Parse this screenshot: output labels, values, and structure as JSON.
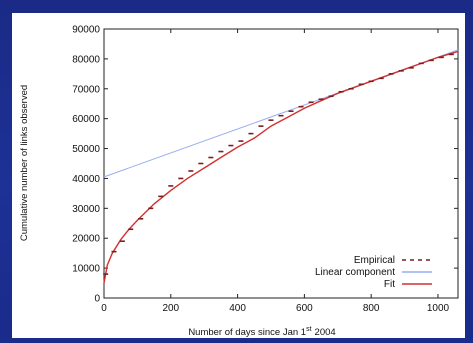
{
  "colors": {
    "slide_background": "#1b2d8c",
    "plot_background": "#ffffff",
    "empirical": "#7a1f1f",
    "linear": "#9aaef0",
    "fit": "#d43030"
  },
  "chart_data": {
    "type": "line",
    "xlabel": "Number of days since Jan 1",
    "xlabel_superscript": "st",
    "xlabel_year": "2004",
    "ylabel": "Cumulative number of links observed",
    "xlim": [
      0,
      1060
    ],
    "ylim": [
      0,
      90000
    ],
    "grid": false,
    "legend_position": "bottom-right",
    "x_ticks": [
      0,
      200,
      400,
      600,
      800,
      1000
    ],
    "y_ticks": [
      0,
      10000,
      20000,
      30000,
      40000,
      50000,
      60000,
      70000,
      80000,
      90000
    ],
    "series": [
      {
        "name": "Empirical",
        "style": "dashed-markers",
        "color": "#7a1f1f",
        "x": [
          5,
          30,
          55,
          80,
          110,
          140,
          170,
          200,
          230,
          260,
          290,
          320,
          350,
          380,
          410,
          440,
          470,
          500,
          530,
          560,
          590,
          620,
          650,
          680,
          710,
          740,
          770,
          800,
          830,
          860,
          890,
          920,
          950,
          980,
          1010,
          1040
        ],
        "values": [
          8000,
          15500,
          19000,
          23000,
          26500,
          30000,
          34000,
          37500,
          40000,
          42500,
          45000,
          47000,
          49000,
          51000,
          52500,
          55000,
          57500,
          59500,
          61000,
          62500,
          64000,
          65500,
          66500,
          67500,
          69000,
          70000,
          71500,
          72500,
          73500,
          75000,
          76000,
          77000,
          78500,
          79500,
          80500,
          81500
        ]
      },
      {
        "name": "Linear component",
        "style": "solid",
        "color": "#9aaef0",
        "x": [
          0,
          1060
        ],
        "values": [
          40500,
          83000
        ]
      },
      {
        "name": "Fit",
        "style": "solid",
        "color": "#d43030",
        "x": [
          0,
          10,
          25,
          50,
          75,
          100,
          150,
          200,
          250,
          300,
          350,
          400,
          450,
          500,
          550,
          600,
          650,
          700,
          750,
          800,
          850,
          900,
          950,
          1000,
          1060
        ],
        "values": [
          5000,
          11000,
          15000,
          19500,
          23000,
          26000,
          31500,
          36000,
          40000,
          43500,
          47000,
          50500,
          53500,
          57500,
          60500,
          63500,
          66000,
          68500,
          70500,
          72500,
          74500,
          76500,
          78500,
          80500,
          82500
        ]
      }
    ]
  }
}
